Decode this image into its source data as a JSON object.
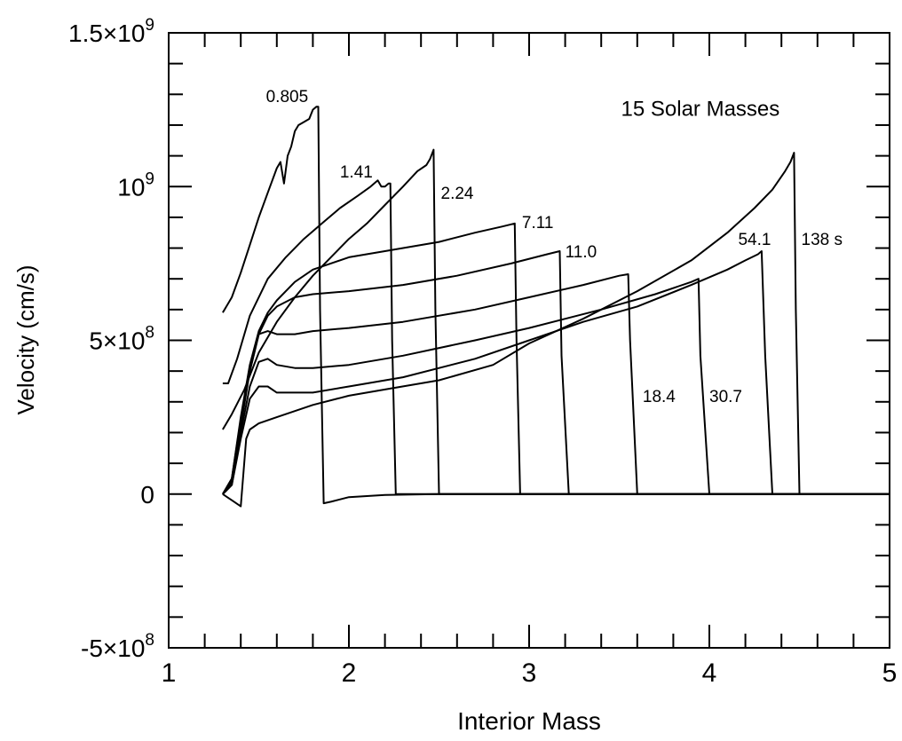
{
  "chart_data": {
    "type": "line",
    "title": "",
    "annotation": "15 Solar Masses",
    "xlabel": "Interior Mass",
    "ylabel": "Velocity (cm/s)",
    "xlim": [
      1,
      5
    ],
    "ylim": [
      -500000000,
      1500000000
    ],
    "x_ticks": [
      1,
      2,
      3,
      4,
      5
    ],
    "x_tick_labels": [
      "1",
      "2",
      "3",
      "4",
      "5"
    ],
    "y_ticks": [
      -500000000,
      0,
      500000000,
      1000000000,
      1500000000
    ],
    "y_tick_labels": [
      {
        "mant": "-5×10",
        "exp": "8"
      },
      {
        "mant": "0",
        "exp": ""
      },
      {
        "mant": "5×10",
        "exp": "8"
      },
      {
        "mant": "10",
        "exp": "9"
      },
      {
        "mant": "1.5×10",
        "exp": "9"
      }
    ],
    "grid": false,
    "legend": "none",
    "line_color": "#000000",
    "series": [
      {
        "name": "0.805",
        "x": [
          1.3,
          1.35,
          1.4,
          1.45,
          1.5,
          1.55,
          1.6,
          1.62,
          1.64,
          1.66,
          1.68,
          1.7,
          1.72,
          1.75,
          1.78,
          1.8,
          1.82,
          1.83,
          1.84,
          1.86,
          1.9,
          2.0,
          2.2,
          2.5,
          3.0,
          4.0,
          5.0
        ],
        "y": [
          590000000,
          640000000,
          720000000,
          810000000,
          900000000,
          980000000,
          1060000000,
          1080000000,
          1010000000,
          1100000000,
          1130000000,
          1180000000,
          1200000000,
          1210000000,
          1220000000,
          1250000000,
          1260000000,
          1260000000,
          600000000,
          -30000000,
          -25000000,
          -10000000,
          -3000000,
          0,
          0,
          0,
          0
        ]
      },
      {
        "name": "1.41",
        "x": [
          1.3,
          1.33,
          1.38,
          1.45,
          1.55,
          1.65,
          1.75,
          1.85,
          1.95,
          2.05,
          2.12,
          2.16,
          2.18,
          2.2,
          2.22,
          2.23,
          2.24,
          2.26,
          2.35,
          2.5,
          3.0,
          4.0,
          5.0
        ],
        "y": [
          360000000,
          360000000,
          440000000,
          580000000,
          700000000,
          770000000,
          830000000,
          880000000,
          930000000,
          970000000,
          1000000000,
          1020000000,
          1000000000,
          1000000000,
          1010000000,
          1010000000,
          500000000,
          0,
          0,
          0,
          0,
          0,
          0
        ]
      },
      {
        "name": "2.24",
        "x": [
          1.3,
          1.35,
          1.42,
          1.5,
          1.6,
          1.7,
          1.8,
          1.9,
          2.0,
          2.1,
          2.2,
          2.3,
          2.38,
          2.43,
          2.45,
          2.47,
          2.48,
          2.5,
          2.6,
          3.0,
          4.0,
          5.0
        ],
        "y": [
          210000000,
          260000000,
          340000000,
          460000000,
          560000000,
          640000000,
          710000000,
          770000000,
          830000000,
          880000000,
          940000000,
          1000000000,
          1050000000,
          1070000000,
          1090000000,
          1120000000,
          600000000,
          0,
          0,
          0,
          0,
          0
        ]
      },
      {
        "name": "7.11",
        "x": [
          1.3,
          1.35,
          1.4,
          1.45,
          1.5,
          1.55,
          1.6,
          1.7,
          1.8,
          2.0,
          2.2,
          2.5,
          2.7,
          2.85,
          2.92,
          2.93,
          2.95,
          3.0,
          4.0,
          5.0
        ],
        "y": [
          0,
          50000000,
          250000000,
          420000000,
          530000000,
          590000000,
          630000000,
          690000000,
          730000000,
          770000000,
          790000000,
          820000000,
          850000000,
          870000000,
          880000000,
          500000000,
          0,
          0,
          0,
          0
        ]
      },
      {
        "name": "11.0",
        "x": [
          1.3,
          1.35,
          1.4,
          1.45,
          1.5,
          1.55,
          1.6,
          1.7,
          1.8,
          2.0,
          2.3,
          2.6,
          2.9,
          3.1,
          3.17,
          3.18,
          3.22,
          3.4,
          4.0,
          5.0
        ],
        "y": [
          0,
          50000000,
          240000000,
          400000000,
          520000000,
          580000000,
          610000000,
          640000000,
          650000000,
          660000000,
          680000000,
          710000000,
          750000000,
          780000000,
          790000000,
          450000000,
          0,
          0,
          0,
          0
        ]
      },
      {
        "name": "18.4",
        "x": [
          1.3,
          1.35,
          1.4,
          1.45,
          1.5,
          1.55,
          1.6,
          1.7,
          1.8,
          2.0,
          2.3,
          2.7,
          3.0,
          3.3,
          3.5,
          3.55,
          3.56,
          3.6,
          3.8,
          4.0,
          5.0
        ],
        "y": [
          0,
          40000000,
          220000000,
          400000000,
          520000000,
          530000000,
          520000000,
          520000000,
          530000000,
          540000000,
          560000000,
          600000000,
          640000000,
          680000000,
          710000000,
          715000000,
          500000000,
          0,
          0,
          0,
          0
        ]
      },
      {
        "name": "30.7",
        "x": [
          1.3,
          1.35,
          1.4,
          1.45,
          1.5,
          1.55,
          1.6,
          1.7,
          1.8,
          2.0,
          2.3,
          2.7,
          3.0,
          3.4,
          3.7,
          3.9,
          3.94,
          3.95,
          4.0,
          4.2,
          5.0
        ],
        "y": [
          0,
          30000000,
          200000000,
          350000000,
          430000000,
          440000000,
          420000000,
          410000000,
          410000000,
          420000000,
          450000000,
          500000000,
          540000000,
          600000000,
          650000000,
          690000000,
          700000000,
          450000000,
          0,
          0,
          0
        ]
      },
      {
        "name": "54.1",
        "x": [
          1.3,
          1.35,
          1.4,
          1.45,
          1.5,
          1.55,
          1.6,
          1.7,
          1.8,
          2.0,
          2.3,
          2.7,
          3.0,
          3.3,
          3.6,
          3.9,
          4.1,
          4.2,
          4.27,
          4.29,
          4.31,
          4.35,
          4.5,
          5.0
        ],
        "y": [
          0,
          30000000,
          180000000,
          310000000,
          350000000,
          350000000,
          330000000,
          330000000,
          330000000,
          350000000,
          380000000,
          440000000,
          500000000,
          560000000,
          610000000,
          680000000,
          730000000,
          760000000,
          780000000,
          790000000,
          450000000,
          0,
          0,
          0
        ]
      },
      {
        "name": "138 s",
        "x": [
          1.3,
          1.35,
          1.4,
          1.43,
          1.45,
          1.5,
          1.6,
          1.7,
          1.8,
          2.0,
          2.2,
          2.5,
          2.8,
          3.0,
          3.3,
          3.6,
          3.9,
          4.1,
          4.25,
          4.35,
          4.42,
          4.45,
          4.47,
          4.48,
          4.5,
          5.0
        ],
        "y": [
          0,
          -20000000,
          -40000000,
          180000000,
          210000000,
          230000000,
          250000000,
          270000000,
          290000000,
          320000000,
          340000000,
          370000000,
          420000000,
          490000000,
          570000000,
          660000000,
          760000000,
          850000000,
          930000000,
          990000000,
          1050000000,
          1080000000,
          1110000000,
          600000000,
          0,
          0
        ]
      }
    ],
    "series_label_anchors": [
      {
        "name": "0.805",
        "x": 1.54,
        "y": 1275000000
      },
      {
        "name": "1.41",
        "x": 1.95,
        "y": 1030000000
      },
      {
        "name": "2.24",
        "x": 2.51,
        "y": 960000000
      },
      {
        "name": "7.11",
        "x": 2.96,
        "y": 865000000
      },
      {
        "name": "11.0",
        "x": 3.2,
        "y": 770000000
      },
      {
        "name": "18.4",
        "x": 3.63,
        "y": 300000000
      },
      {
        "name": "30.7",
        "x": 4.0,
        "y": 300000000
      },
      {
        "name": "54.1",
        "x": 4.16,
        "y": 810000000
      },
      {
        "name": "138 s",
        "x": 4.51,
        "y": 810000000
      }
    ],
    "annotation_anchor": {
      "x": 3.51,
      "y": 1230000000
    }
  }
}
